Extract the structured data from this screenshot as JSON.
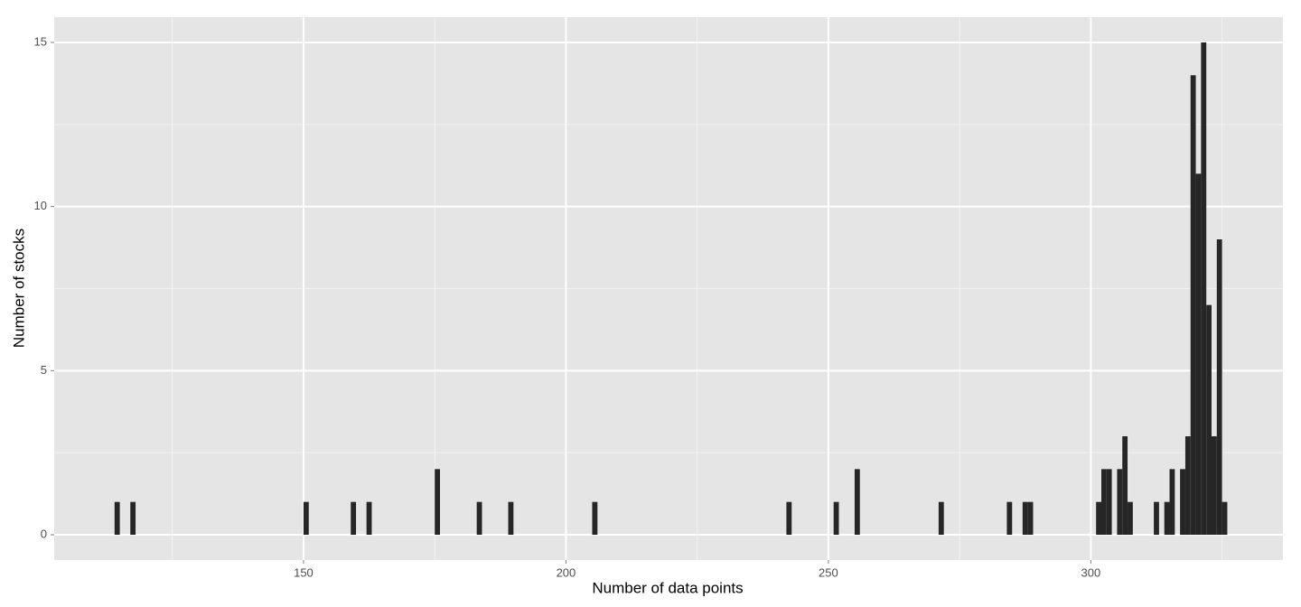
{
  "chart_data": {
    "type": "histogram",
    "xlabel": "Number of data points",
    "ylabel": "Number of stocks",
    "binwidth": 1,
    "x": [
      114,
      117,
      150,
      159,
      162,
      175,
      183,
      189,
      205,
      242,
      251,
      255,
      271,
      284,
      287,
      288,
      301,
      302,
      303,
      305,
      306,
      307,
      312,
      314,
      315,
      317,
      318,
      319,
      320,
      321,
      322,
      323,
      324,
      325
    ],
    "values": [
      1,
      1,
      1,
      1,
      1,
      2,
      1,
      1,
      1,
      1,
      1,
      2,
      1,
      1,
      1,
      1,
      1,
      2,
      2,
      2,
      3,
      1,
      1,
      1,
      2,
      2,
      3,
      14,
      11,
      15,
      7,
      3,
      9,
      1
    ],
    "color": "#262626",
    "xlim": [
      102.5,
      336.6
    ],
    "ylim": [
      -0.77,
      15.77
    ],
    "xticks": [
      150,
      200,
      250,
      300
    ],
    "yticks": [
      0,
      5,
      10,
      15
    ],
    "xminor": [
      125,
      175,
      225,
      275,
      325
    ],
    "yminor": [
      2.5,
      7.5,
      12.5
    ],
    "grid": true
  }
}
